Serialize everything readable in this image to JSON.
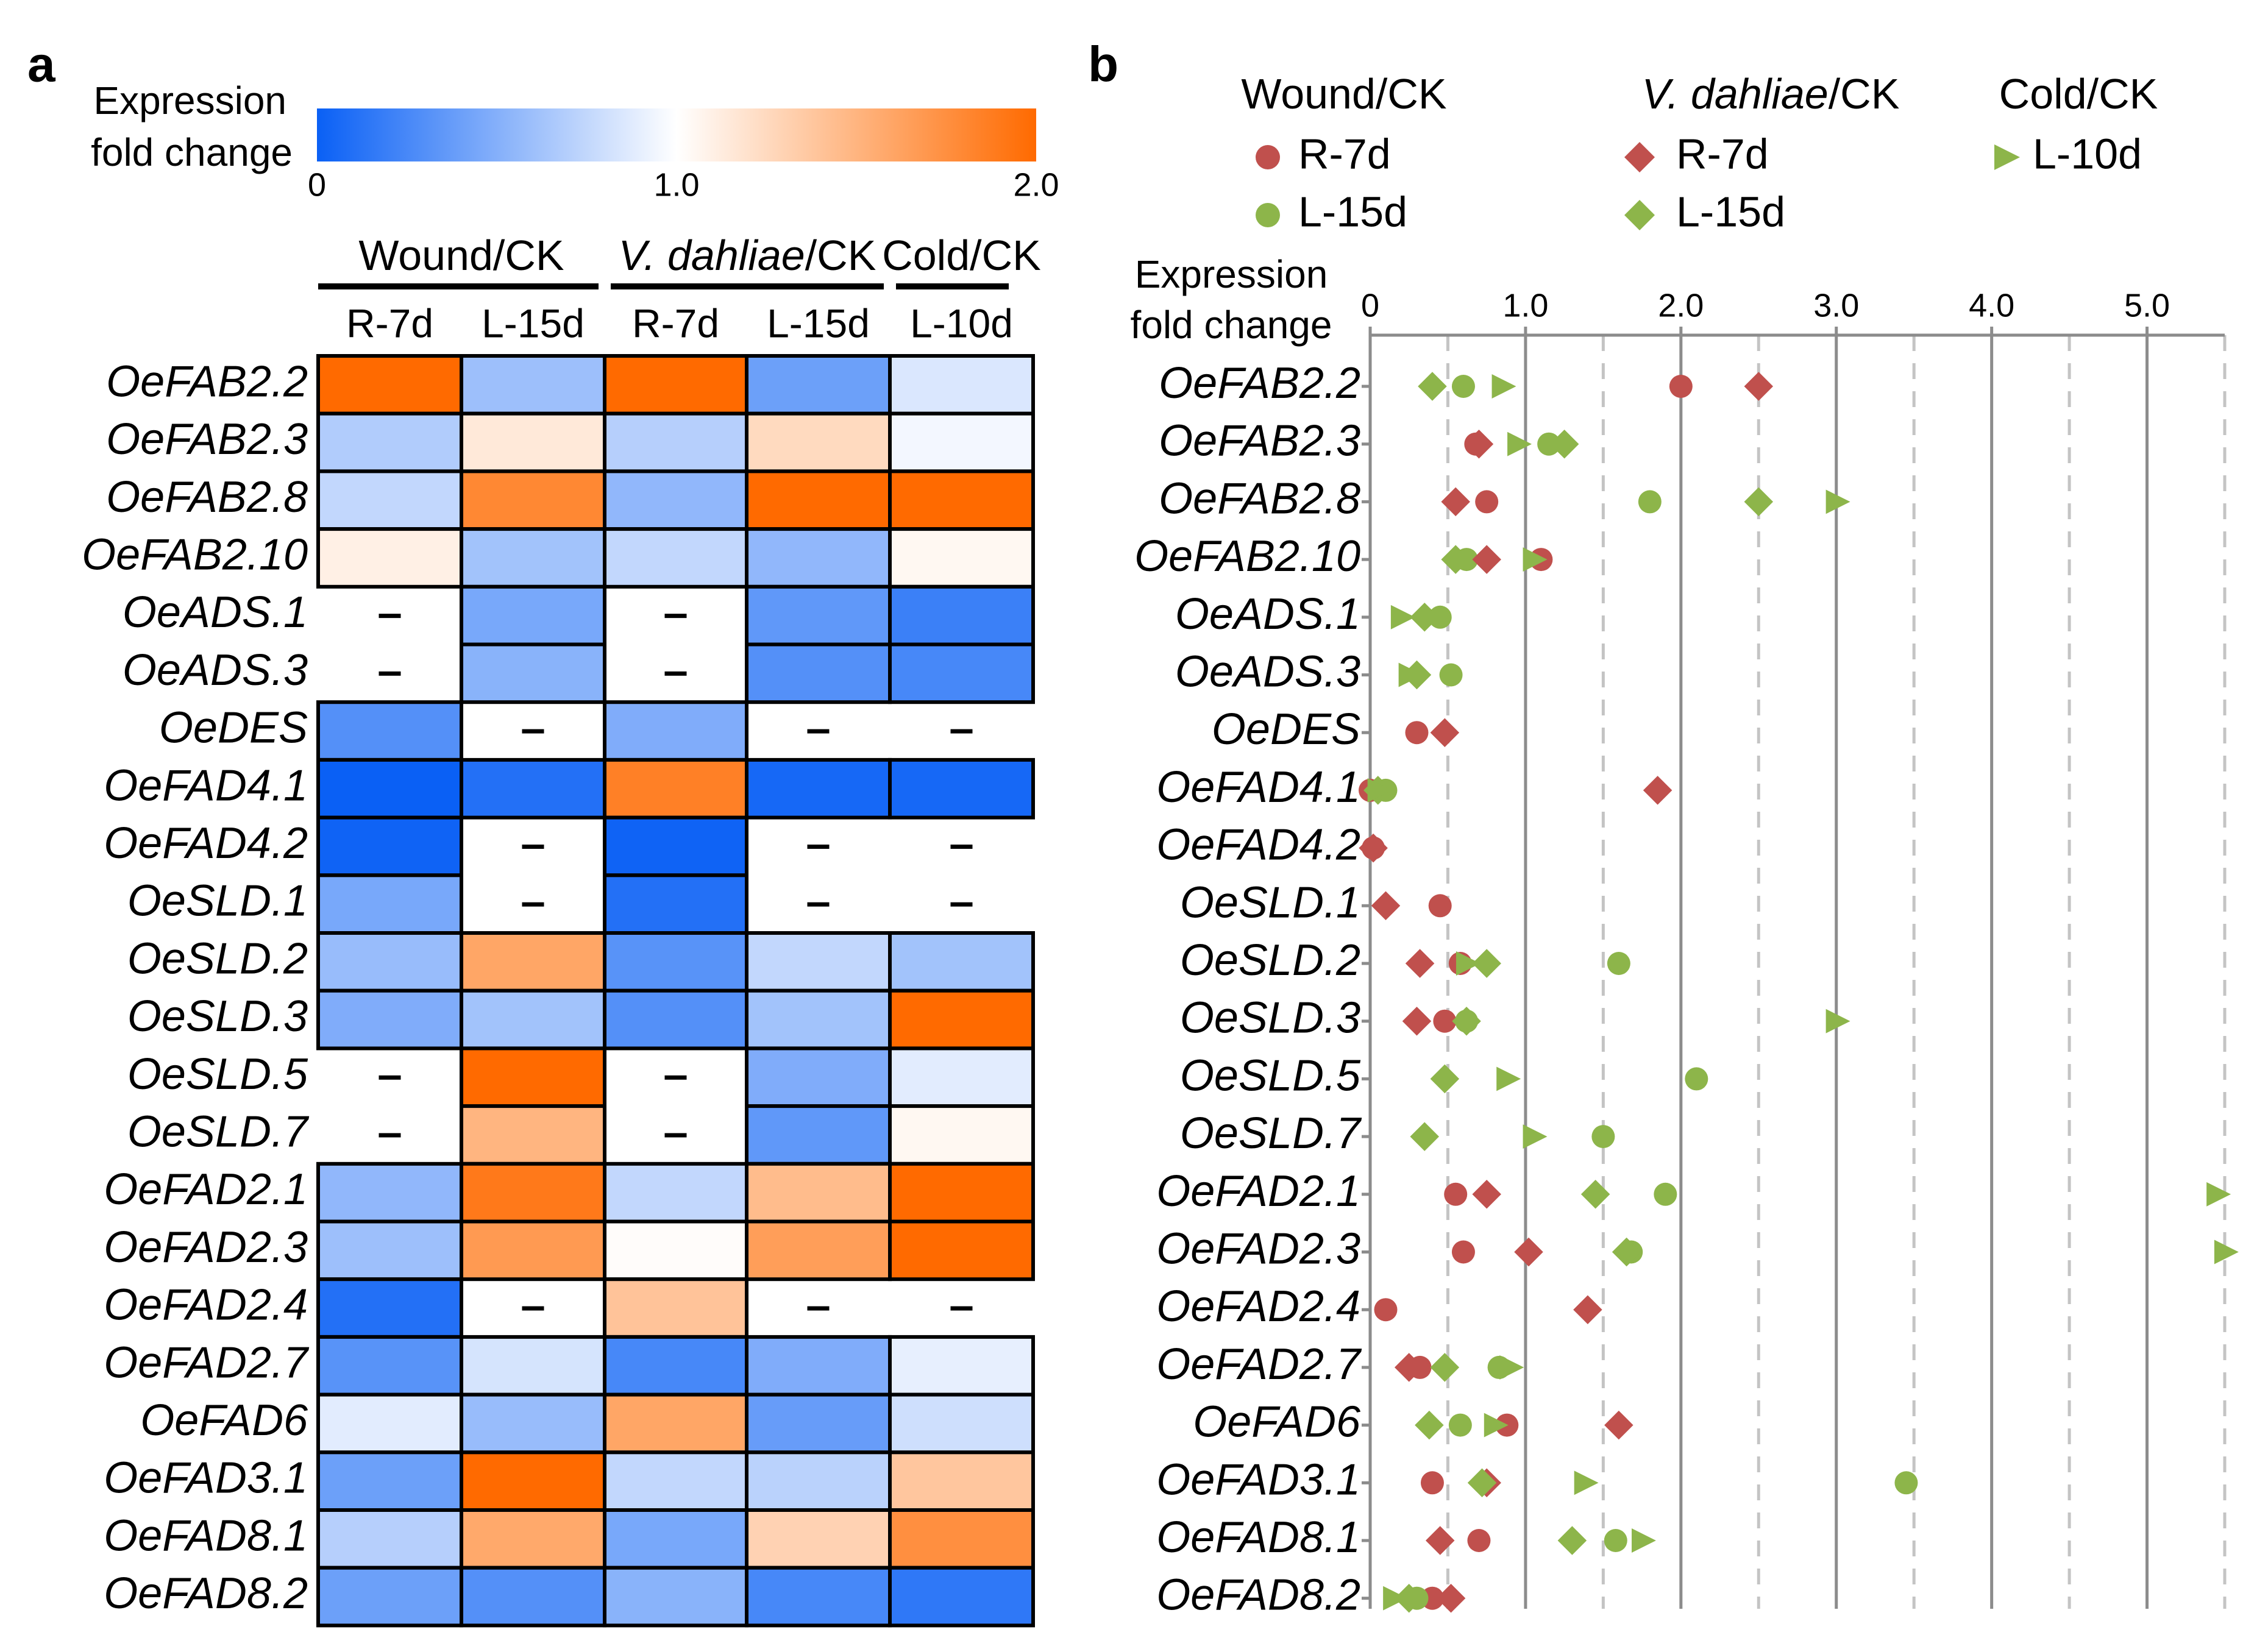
{
  "panel_a_letter": "a",
  "panel_b_letter": "b",
  "colorbar": {
    "title_line1": "Expression",
    "title_line2": "fold change",
    "ticks": [
      "0",
      "1.0",
      "2.0"
    ],
    "low_color": "#0a60f5",
    "mid_color": "#ffffff",
    "high_color": "#ff6a00"
  },
  "groups": [
    {
      "pre": "",
      "ital": "",
      "post": "Wound/CK"
    },
    {
      "pre": "",
      "ital": "V. dahliae",
      "post": "/CK"
    },
    {
      "pre": "",
      "ital": "",
      "post": "Cold/CK"
    }
  ],
  "columns": [
    "R-7d",
    "L-15d",
    "R-7d",
    "L-15d",
    "L-10d"
  ],
  "missing_symbol": "–",
  "genes": [
    "OeFAB2.2",
    "OeFAB2.3",
    "OeFAB2.8",
    "OeFAB2.10",
    "OeADS.1",
    "OeADS.3",
    "OeDES",
    "OeFAD4.1",
    "OeFAD4.2",
    "OeSLD.1",
    "OeSLD.2",
    "OeSLD.3",
    "OeSLD.5",
    "OeSLD.7",
    "OeFAD2.1",
    "OeFAD2.3",
    "OeFAD2.4",
    "OeFAD2.7",
    "OeFAD6",
    "OeFAD3.1",
    "OeFAD8.1",
    "OeFAD8.2"
  ],
  "legend_b": {
    "groups": [
      {
        "ital": "",
        "post": "Wound/CK"
      },
      {
        "ital": "V. dahliae",
        "post": "/CK"
      },
      {
        "ital": "",
        "post": "Cold/CK"
      }
    ],
    "entries": [
      {
        "label": "R-7d",
        "marker": "circle",
        "color": "#c0504d",
        "group": 0,
        "row": 0
      },
      {
        "label": "L-15d",
        "marker": "circle",
        "color": "#8db54a",
        "group": 0,
        "row": 1
      },
      {
        "label": "R-7d",
        "marker": "diamond",
        "color": "#c0504d",
        "group": 1,
        "row": 0
      },
      {
        "label": "L-15d",
        "marker": "diamond",
        "color": "#8db54a",
        "group": 1,
        "row": 1
      },
      {
        "label": "L-10d",
        "marker": "triangle",
        "color": "#8db54a",
        "group": 2,
        "row": 0
      }
    ]
  },
  "chart_data": [
    {
      "type": "heatmap",
      "title": "Expression fold change",
      "x_groups": [
        "Wound/CK",
        "V. dahliae/CK",
        "Cold/CK"
      ],
      "x": [
        "R-7d",
        "L-15d",
        "R-7d",
        "L-15d",
        "L-10d"
      ],
      "y": [
        "OeFAB2.2",
        "OeFAB2.3",
        "OeFAB2.8",
        "OeFAB2.10",
        "OeADS.1",
        "OeADS.3",
        "OeDES",
        "OeFAD4.1",
        "OeFAD4.2",
        "OeSLD.1",
        "OeSLD.2",
        "OeSLD.3",
        "OeSLD.5",
        "OeSLD.7",
        "OeFAD2.1",
        "OeFAD2.3",
        "OeFAD2.4",
        "OeFAD2.7",
        "OeFAD6",
        "OeFAD3.1",
        "OeFAD8.1",
        "OeFAD8.2"
      ],
      "color_range": [
        0,
        2.0
      ],
      "values": [
        [
          2.0,
          0.6,
          2.5,
          0.4,
          0.85
        ],
        [
          0.68,
          1.15,
          0.7,
          1.25,
          0.95
        ],
        [
          0.75,
          1.8,
          0.55,
          2.5,
          3.0
        ],
        [
          1.1,
          0.62,
          0.75,
          0.55,
          1.05
        ],
        [
          null,
          0.45,
          null,
          0.35,
          0.2
        ],
        [
          null,
          0.52,
          null,
          0.3,
          0.25
        ],
        [
          0.3,
          null,
          0.48,
          null,
          null
        ],
        [
          0.0,
          0.1,
          1.85,
          0.05,
          0.05
        ],
        [
          0.02,
          null,
          0.02,
          null,
          null
        ],
        [
          0.45,
          null,
          0.1,
          null,
          null
        ],
        [
          0.58,
          1.6,
          0.32,
          0.75,
          0.62
        ],
        [
          0.48,
          0.62,
          0.3,
          0.62,
          3.0
        ],
        [
          null,
          2.1,
          null,
          0.48,
          0.88
        ],
        [
          null,
          1.5,
          null,
          0.35,
          1.05
        ],
        [
          0.55,
          1.9,
          0.75,
          1.45,
          5.45
        ],
        [
          0.6,
          1.68,
          1.02,
          1.65,
          5.5
        ],
        [
          0.1,
          null,
          1.4,
          null,
          null
        ],
        [
          0.32,
          0.83,
          0.25,
          0.48,
          0.9
        ],
        [
          0.88,
          0.58,
          1.6,
          0.38,
          0.8
        ],
        [
          0.4,
          3.45,
          0.75,
          0.72,
          1.38
        ],
        [
          0.7,
          1.58,
          0.45,
          1.3,
          1.75
        ],
        [
          0.4,
          0.3,
          0.52,
          0.25,
          0.15
        ]
      ]
    },
    {
      "type": "scatter",
      "xlabel_line1": "Expression",
      "xlabel_line2": "fold change",
      "xlim": [
        0,
        5.5
      ],
      "xticks": [
        0,
        1.0,
        2.0,
        3.0,
        4.0,
        5.0
      ],
      "xtick_labels": [
        "0",
        "1.0",
        "2.0",
        "3.0",
        "4.0",
        "5.0"
      ],
      "grid": "solid at integers, dashed at halves",
      "categories": [
        "OeFAB2.2",
        "OeFAB2.3",
        "OeFAB2.8",
        "OeFAB2.10",
        "OeADS.1",
        "OeADS.3",
        "OeDES",
        "OeFAD4.1",
        "OeFAD4.2",
        "OeSLD.1",
        "OeSLD.2",
        "OeSLD.3",
        "OeSLD.5",
        "OeSLD.7",
        "OeFAD2.1",
        "OeFAD2.3",
        "OeFAD2.4",
        "OeFAD2.7",
        "OeFAD6",
        "OeFAD3.1",
        "OeFAD8.1",
        "OeFAD8.2"
      ],
      "series": [
        {
          "name": "Wound/CK R-7d",
          "marker": "circle",
          "color": "#c0504d",
          "values": [
            2.0,
            0.68,
            0.75,
            1.1,
            null,
            null,
            0.3,
            0.0,
            0.02,
            0.45,
            0.58,
            0.48,
            null,
            null,
            0.55,
            0.6,
            0.1,
            0.32,
            0.88,
            0.4,
            0.7,
            0.4
          ]
        },
        {
          "name": "Wound/CK L-15d",
          "marker": "circle",
          "color": "#8db54a",
          "values": [
            0.6,
            1.15,
            1.8,
            0.62,
            0.45,
            0.52,
            null,
            0.1,
            null,
            null,
            1.6,
            0.62,
            2.1,
            1.5,
            1.9,
            1.68,
            null,
            0.83,
            0.58,
            3.45,
            1.58,
            0.3
          ]
        },
        {
          "name": "V. dahliae/CK R-7d",
          "marker": "diamond",
          "color": "#c0504d",
          "values": [
            2.5,
            0.7,
            0.55,
            0.75,
            null,
            null,
            0.48,
            1.85,
            0.02,
            0.1,
            0.32,
            0.3,
            null,
            null,
            0.75,
            1.02,
            1.4,
            0.25,
            1.6,
            0.75,
            0.45,
            0.52
          ]
        },
        {
          "name": "V. dahliae/CK L-15d",
          "marker": "diamond",
          "color": "#8db54a",
          "values": [
            0.4,
            1.25,
            2.5,
            0.55,
            0.35,
            0.3,
            null,
            0.05,
            null,
            null,
            0.75,
            0.62,
            0.48,
            0.35,
            1.45,
            1.65,
            null,
            0.48,
            0.38,
            0.72,
            1.3,
            0.25
          ]
        },
        {
          "name": "Cold/CK L-10d",
          "marker": "triangle",
          "color": "#8db54a",
          "values": [
            0.85,
            0.95,
            3.0,
            1.05,
            0.2,
            0.25,
            null,
            0.05,
            null,
            null,
            0.62,
            3.0,
            0.88,
            1.05,
            5.45,
            5.5,
            null,
            0.9,
            0.8,
            1.38,
            1.75,
            0.15
          ]
        }
      ]
    }
  ]
}
